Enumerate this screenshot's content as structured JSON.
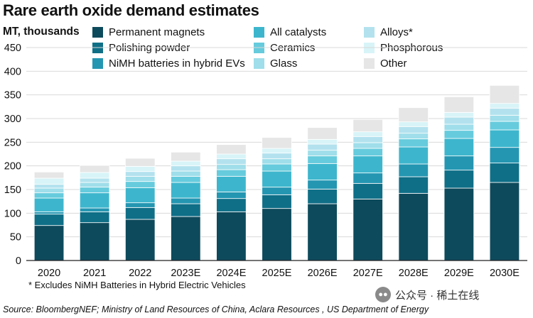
{
  "chart_data": {
    "type": "bar",
    "stacked": true,
    "title": "Rare earth oxide demand estimates",
    "ylabel": "MT, thousands",
    "xlabel": "",
    "ylim": [
      0,
      450
    ],
    "yticks": [
      0,
      50,
      100,
      150,
      200,
      250,
      300,
      350,
      400,
      450
    ],
    "grid": true,
    "categories": [
      "2020",
      "2021",
      "2022",
      "2023E",
      "2024E",
      "2025E",
      "2026E",
      "2027E",
      "2028E",
      "2029E",
      "2030E"
    ],
    "series": [
      {
        "name": "Permanent magnets",
        "color": "#0d4a5c",
        "values": [
          74,
          80,
          87,
          93,
          103,
          110,
          120,
          130,
          142,
          153,
          165
        ]
      },
      {
        "name": "Polishing powder",
        "color": "#0f6f87",
        "values": [
          24,
          23,
          25,
          27,
          28,
          29,
          31,
          33,
          35,
          38,
          41
        ]
      },
      {
        "name": "NiMH batteries in hybrid EVs",
        "color": "#2496b2",
        "values": [
          5,
          8,
          10,
          12,
          14,
          16,
          19,
          22,
          27,
          30,
          33
        ]
      },
      {
        "name": "All catalysts",
        "color": "#3db6cd",
        "values": [
          29,
          32,
          32,
          33,
          33,
          34,
          35,
          36,
          36,
          37,
          37
        ]
      },
      {
        "name": "Ceramics",
        "color": "#66cbdd",
        "values": [
          11,
          12,
          13,
          13,
          14,
          15,
          16,
          16,
          17,
          17,
          18
        ]
      },
      {
        "name": "Glass",
        "color": "#9fdeea",
        "values": [
          10,
          10,
          11,
          11,
          11,
          11,
          12,
          12,
          12,
          13,
          13
        ]
      },
      {
        "name": "Alloys*",
        "color": "#b3e2ee",
        "values": [
          8,
          9,
          10,
          11,
          12,
          12,
          13,
          13,
          14,
          15,
          15
        ]
      },
      {
        "name": "Phosphorous",
        "color": "#d8f4f8",
        "values": [
          13,
          12,
          11,
          10,
          10,
          10,
          10,
          10,
          10,
          10,
          10
        ]
      },
      {
        "name": "Other",
        "color": "#e6e6e6",
        "values": [
          13,
          15,
          17,
          19,
          20,
          23,
          25,
          26,
          30,
          33,
          38
        ]
      }
    ],
    "legend": "top"
  },
  "footnote": "* Excludes NiMH Batteries in Hybrid Electric Vehicles",
  "source": "Source: BloombergNEF; Ministry of Land Resources of China, Aclara Resources , US Department of Energy",
  "watermark": "公众号 · 稀土在线"
}
